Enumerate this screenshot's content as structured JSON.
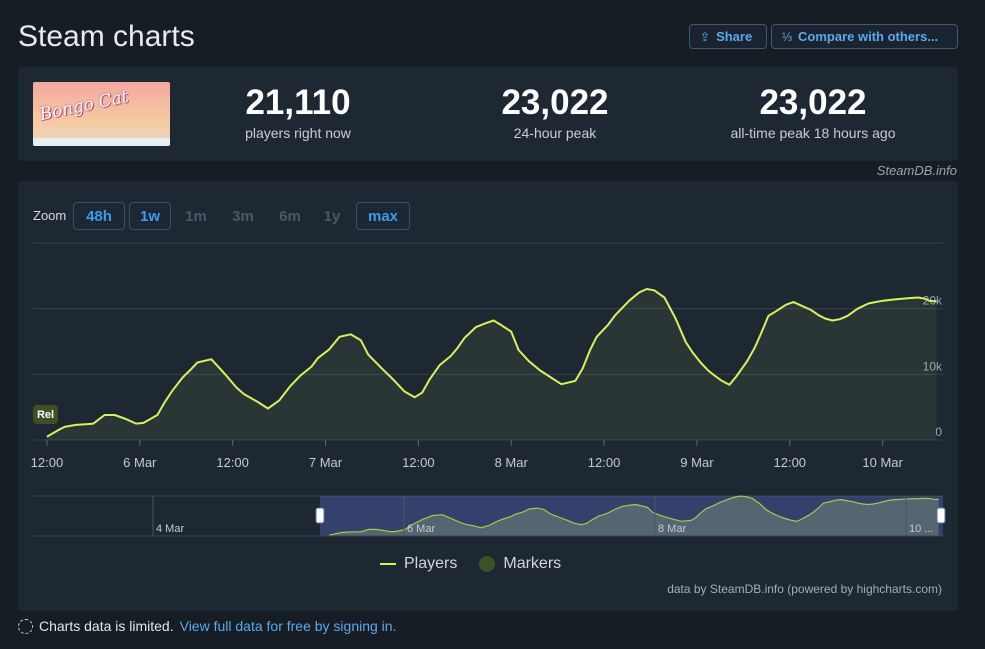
{
  "header": {
    "title": "Steam charts",
    "share_label": "Share",
    "compare_label": "Compare with others..."
  },
  "game": {
    "logo_text": "Bongo Cat"
  },
  "stats": [
    {
      "value": "21,110",
      "label": "players right now"
    },
    {
      "value": "23,022",
      "label": "24-hour peak"
    },
    {
      "value": "23,022",
      "label": "all-time peak 18 hours ago"
    }
  ],
  "credit": "SteamDB.info",
  "zoom": {
    "label": "Zoom",
    "buttons": [
      {
        "label": "48h",
        "active": true
      },
      {
        "label": "1w",
        "active": true
      },
      {
        "label": "1m",
        "active": false
      },
      {
        "label": "3m",
        "active": false
      },
      {
        "label": "6m",
        "active": false
      },
      {
        "label": "1y",
        "active": false
      },
      {
        "label": "max",
        "active": true
      }
    ]
  },
  "chart_data": {
    "type": "line",
    "series": [
      {
        "name": "Players",
        "color": "#d6f15e",
        "x": [
          0,
          0.12,
          0.19,
          0.31,
          0.42,
          0.5,
          0.62,
          0.73,
          0.85,
          0.96,
          1.04,
          1.19,
          1.27,
          1.35,
          1.46,
          1.54,
          1.62,
          1.77,
          1.92,
          2.04,
          2.12,
          2.27,
          2.38,
          2.5,
          2.62,
          2.73,
          2.85,
          2.92,
          3.04,
          3.15,
          3.27,
          3.38,
          3.46,
          3.62,
          3.73,
          3.85,
          3.96,
          4.04,
          4.12,
          4.23,
          4.35,
          4.42,
          4.5,
          4.62,
          4.73,
          4.81,
          4.88,
          5.0,
          5.08,
          5.19,
          5.31,
          5.42,
          5.54,
          5.69,
          5.77,
          5.85,
          5.92,
          6.04,
          6.12,
          6.27,
          6.38,
          6.46,
          6.54,
          6.65,
          6.77,
          6.88,
          6.96,
          7.04,
          7.12,
          7.19,
          7.27,
          7.35,
          7.42,
          7.54,
          7.62,
          7.69,
          7.77,
          7.85,
          7.96,
          8.04,
          8.12,
          8.23,
          8.31,
          8.38,
          8.46,
          8.54,
          8.62,
          8.73,
          8.85,
          8.92,
          9.0,
          9.12,
          9.27,
          9.38,
          9.46,
          9.5,
          9.58
        ],
        "y": [
          500,
          1500,
          2000,
          2300,
          2400,
          2500,
          3800,
          3800,
          3200,
          2500,
          2600,
          3800,
          5800,
          7500,
          9500,
          10600,
          11800,
          12300,
          10000,
          8000,
          7000,
          5800,
          4800,
          6000,
          8200,
          9800,
          11200,
          12500,
          13800,
          15700,
          16100,
          15200,
          13000,
          10700,
          9200,
          7400,
          6500,
          7200,
          9200,
          11400,
          12800,
          14000,
          15600,
          17200,
          17800,
          18200,
          17600,
          16500,
          13700,
          12000,
          10600,
          9600,
          8500,
          9000,
          10900,
          13700,
          15700,
          17500,
          19000,
          21200,
          22500,
          23000,
          22800,
          21700,
          18500,
          14900,
          13200,
          11800,
          10600,
          9800,
          9000,
          8400,
          9600,
          12000,
          14000,
          16200,
          18900,
          19600,
          20600,
          21000,
          20500,
          19800,
          19000,
          18500,
          18200,
          18400,
          18900,
          20000,
          20800,
          21000,
          21200,
          21400,
          21600,
          21700,
          21500,
          21200,
          21110
        ]
      },
      {
        "name": "Markers",
        "color": "#3d5125"
      }
    ],
    "x_ticks": [
      "12:00",
      "6 Mar",
      "12:00",
      "7 Mar",
      "12:00",
      "8 Mar",
      "12:00",
      "9 Mar",
      "12:00",
      "10 Mar"
    ],
    "y_ticks": [
      "0",
      "10k",
      "20k"
    ],
    "ylim": [
      0,
      30000
    ],
    "markers": [
      {
        "label": "Rel"
      }
    ],
    "navigator_ticks": [
      "4 Mar",
      "6 Mar",
      "8 Mar",
      "10 ..."
    ],
    "legend_position": "bottom-center",
    "grid": true
  },
  "legend": [
    {
      "label": "Players"
    },
    {
      "label": "Markers"
    }
  ],
  "powered_by": "data by SteamDB.info (powered by highcharts.com)",
  "notice": {
    "text": "Charts data is limited.",
    "link": "View full data for free by signing in."
  }
}
